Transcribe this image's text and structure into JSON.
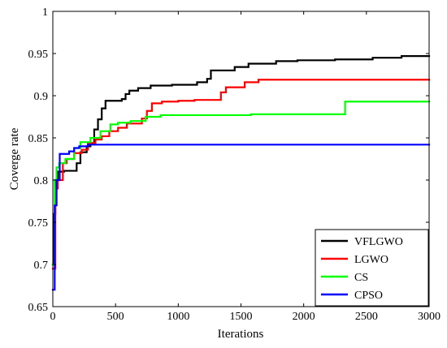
{
  "chart_data": {
    "type": "line",
    "title": "",
    "xlabel": "Iterations",
    "ylabel": "Coverge rate",
    "xlim": [
      0,
      3000
    ],
    "ylim": [
      0.65,
      1
    ],
    "xticks": [
      0,
      500,
      1000,
      1500,
      2000,
      2500,
      3000
    ],
    "yticks": [
      0.65,
      0.7,
      0.75,
      0.8,
      0.85,
      0.9,
      0.95,
      1
    ],
    "xtick_labels": [
      "0",
      "500",
      "1000",
      "1500",
      "2000",
      "2500",
      "3000"
    ],
    "ytick_labels": [
      "0.65",
      "0.7",
      "0.75",
      "0.8",
      "0.85",
      "0.9",
      "0.95",
      "1"
    ],
    "grid": false,
    "legend_position": "bottom-right",
    "series": [
      {
        "name": "VFLGWO",
        "color": "#000000",
        "step": true,
        "points": [
          [
            0,
            0.7
          ],
          [
            10,
            0.76
          ],
          [
            20,
            0.8
          ],
          [
            40,
            0.81
          ],
          [
            90,
            0.811
          ],
          [
            190,
            0.82
          ],
          [
            220,
            0.833
          ],
          [
            270,
            0.84
          ],
          [
            300,
            0.843
          ],
          [
            330,
            0.86
          ],
          [
            360,
            0.872
          ],
          [
            390,
            0.885
          ],
          [
            420,
            0.894
          ],
          [
            550,
            0.896
          ],
          [
            580,
            0.902
          ],
          [
            610,
            0.906
          ],
          [
            680,
            0.909
          ],
          [
            780,
            0.912
          ],
          [
            950,
            0.913
          ],
          [
            1150,
            0.916
          ],
          [
            1230,
            0.92
          ],
          [
            1260,
            0.93
          ],
          [
            1450,
            0.934
          ],
          [
            1560,
            0.938
          ],
          [
            1780,
            0.941
          ],
          [
            1950,
            0.942
          ],
          [
            2250,
            0.943
          ],
          [
            2550,
            0.945
          ],
          [
            2780,
            0.947
          ],
          [
            3000,
            0.947
          ]
        ]
      },
      {
        "name": "LGWO",
        "color": "#ff0000",
        "step": true,
        "points": [
          [
            0,
            0.695
          ],
          [
            20,
            0.79
          ],
          [
            40,
            0.8
          ],
          [
            80,
            0.82
          ],
          [
            110,
            0.825
          ],
          [
            170,
            0.832
          ],
          [
            230,
            0.836
          ],
          [
            280,
            0.844
          ],
          [
            340,
            0.848
          ],
          [
            390,
            0.852
          ],
          [
            450,
            0.858
          ],
          [
            520,
            0.862
          ],
          [
            590,
            0.867
          ],
          [
            710,
            0.873
          ],
          [
            750,
            0.882
          ],
          [
            790,
            0.891
          ],
          [
            870,
            0.893
          ],
          [
            1000,
            0.894
          ],
          [
            1130,
            0.895
          ],
          [
            1340,
            0.904
          ],
          [
            1380,
            0.91
          ],
          [
            1530,
            0.916
          ],
          [
            1640,
            0.919
          ],
          [
            3000,
            0.919
          ]
        ]
      },
      {
        "name": "CS",
        "color": "#00ff00",
        "step": true,
        "points": [
          [
            0,
            0.7
          ],
          [
            15,
            0.8
          ],
          [
            30,
            0.815
          ],
          [
            50,
            0.82
          ],
          [
            100,
            0.825
          ],
          [
            170,
            0.838
          ],
          [
            220,
            0.845
          ],
          [
            300,
            0.85
          ],
          [
            380,
            0.858
          ],
          [
            460,
            0.866
          ],
          [
            520,
            0.868
          ],
          [
            620,
            0.87
          ],
          [
            740,
            0.875
          ],
          [
            860,
            0.877
          ],
          [
            1580,
            0.878
          ],
          [
            2330,
            0.893
          ],
          [
            3000,
            0.893
          ]
        ]
      },
      {
        "name": "CPSO",
        "color": "#0000ff",
        "step": true,
        "points": [
          [
            0,
            0.67
          ],
          [
            15,
            0.77
          ],
          [
            30,
            0.8
          ],
          [
            55,
            0.831
          ],
          [
            130,
            0.834
          ],
          [
            170,
            0.838
          ],
          [
            210,
            0.84
          ],
          [
            280,
            0.842
          ],
          [
            3000,
            0.842
          ]
        ]
      }
    ]
  }
}
